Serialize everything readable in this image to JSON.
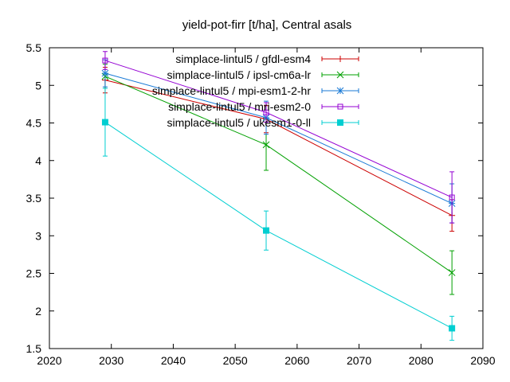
{
  "chart_data": {
    "type": "line",
    "title": "yield-pot-firr [t/ha], Central asals",
    "xlabel": "",
    "ylabel": "",
    "xlim": [
      2020,
      2090
    ],
    "ylim": [
      1.5,
      5.5
    ],
    "xticks": [
      2020,
      2030,
      2040,
      2050,
      2060,
      2070,
      2080,
      2090
    ],
    "yticks": [
      1.5,
      2,
      2.5,
      3,
      3.5,
      4,
      4.5,
      5,
      5.5
    ],
    "ytick_labels": [
      "1.5",
      "2",
      "2.5",
      "3",
      "3.5",
      "4",
      "4.5",
      "5",
      "5.5"
    ],
    "grid": false,
    "legend_position": "top-right",
    "x": [
      2029,
      2055,
      2085
    ],
    "series": [
      {
        "name": "simplace-lintul5 / gfdl-esm4",
        "color": "#cc0000",
        "marker": "plus",
        "values": [
          5.07,
          4.55,
          3.27
        ],
        "err": [
          0.17,
          0.18,
          0.21
        ]
      },
      {
        "name": "simplace-lintul5 / ipsl-cm6a-lr",
        "color": "#00a000",
        "marker": "cross",
        "values": [
          5.12,
          4.21,
          2.51
        ],
        "err": [
          0.16,
          0.34,
          0.29
        ]
      },
      {
        "name": "simplace-lintul5 / mpi-esm1-2-hr",
        "color": "#1a7ad6",
        "marker": "star",
        "values": [
          5.16,
          4.57,
          3.43
        ],
        "err": [
          0.18,
          0.22,
          0.26
        ]
      },
      {
        "name": "simplace-lintul5 / mri-esm2-0",
        "color": "#9400d3",
        "marker": "box",
        "values": [
          5.33,
          4.64,
          3.51
        ],
        "err": [
          0.12,
          0.13,
          0.34
        ]
      },
      {
        "name": "simplace-lintul5 / ukesm1-0-ll",
        "color": "#00ced1",
        "marker": "filled-box",
        "values": [
          4.51,
          3.07,
          1.77
        ],
        "err": [
          0.45,
          0.26,
          0.16
        ]
      }
    ]
  }
}
